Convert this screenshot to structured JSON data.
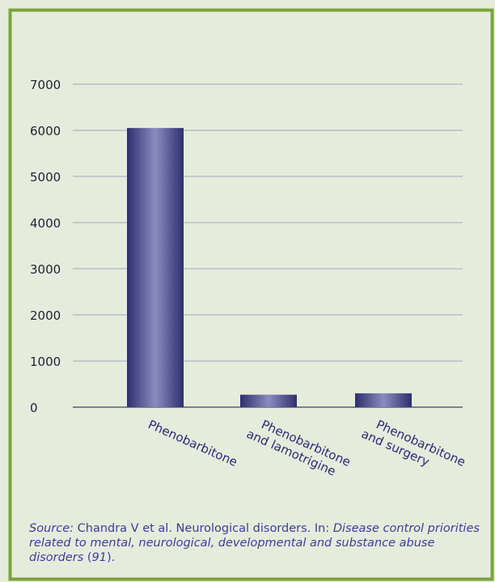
{
  "chart_data": {
    "type": "bar",
    "categories": [
      [
        "Phenobarbitone"
      ],
      [
        "Phenobarbitone",
        "and lamotrigine"
      ],
      [
        "Phenobarbitone",
        "and surgery"
      ]
    ],
    "values": [
      6050,
      270,
      300
    ],
    "ylim": [
      0,
      7000
    ],
    "yticks": [
      0,
      1000,
      2000,
      3000,
      4000,
      5000,
      6000,
      7000
    ],
    "grid": true,
    "bar_color": "#2e2f6e",
    "bar_highlight": "#8a8cc0",
    "frame_color": "#7aa33a",
    "grid_color": "#8a8fb8"
  },
  "source": {
    "label": "Source:",
    "authors": " Chandra V et al. Neurological disorders. In: ",
    "title": "Disease control priorities related to mental, neurological, developmental and substance abuse disorders",
    "ref_open": " (",
    "ref": "91",
    "ref_close": ")."
  }
}
